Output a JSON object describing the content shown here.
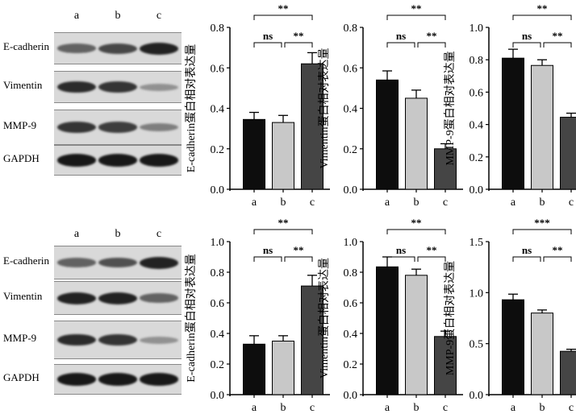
{
  "blots": [
    {
      "lanes": [
        "a",
        "b",
        "c"
      ],
      "proteins": [
        "E-cadherin",
        "Vimentin",
        "MMP-9",
        "GAPDH"
      ],
      "intensity": [
        [
          0.55,
          0.7,
          0.9
        ],
        [
          0.85,
          0.8,
          0.3
        ],
        [
          0.8,
          0.75,
          0.4
        ],
        [
          0.95,
          0.95,
          0.95
        ]
      ]
    },
    {
      "lanes": [
        "a",
        "b",
        "c"
      ],
      "proteins": [
        "E-cadherin",
        "Vimentin",
        "MMP-9",
        "GAPDH"
      ],
      "intensity": [
        [
          0.55,
          0.65,
          0.9
        ],
        [
          0.9,
          0.9,
          0.55
        ],
        [
          0.85,
          0.8,
          0.3
        ],
        [
          0.95,
          0.95,
          0.95
        ]
      ]
    }
  ],
  "colors": {
    "a": "#0d0d0d",
    "b": "#c8c8c8",
    "c": "#454545"
  },
  "chart_data": [
    {
      "type": "bar",
      "categories": [
        "a",
        "b",
        "c"
      ],
      "values": [
        0.345,
        0.33,
        0.62
      ],
      "errors": [
        0.035,
        0.035,
        0.055
      ],
      "ylabel": "E-cadherin蛋白相对表达量",
      "ylim": [
        0,
        0.8
      ],
      "yticks": [
        "0.0",
        "0.2",
        "0.4",
        "0.6",
        "0.8"
      ],
      "sig": [
        {
          "pair": [
            "a",
            "c"
          ],
          "label": "**"
        },
        {
          "pair": [
            "a",
            "b"
          ],
          "label": "ns"
        },
        {
          "pair": [
            "b",
            "c"
          ],
          "label": "**"
        }
      ]
    },
    {
      "type": "bar",
      "categories": [
        "a",
        "b",
        "c"
      ],
      "values": [
        0.54,
        0.45,
        0.2
      ],
      "errors": [
        0.045,
        0.04,
        0.025
      ],
      "ylabel": "Vimentin蛋白相对表达量",
      "ylim": [
        0,
        0.8
      ],
      "yticks": [
        "0.0",
        "0.2",
        "0.4",
        "0.6",
        "0.8"
      ],
      "sig": [
        {
          "pair": [
            "a",
            "c"
          ],
          "label": "**"
        },
        {
          "pair": [
            "a",
            "b"
          ],
          "label": "ns"
        },
        {
          "pair": [
            "b",
            "c"
          ],
          "label": "**"
        }
      ]
    },
    {
      "type": "bar",
      "categories": [
        "a",
        "b",
        "c"
      ],
      "values": [
        0.81,
        0.765,
        0.445
      ],
      "errors": [
        0.055,
        0.035,
        0.025
      ],
      "ylabel": "MMP-9蛋白相对表达量",
      "ylim": [
        0,
        1.0
      ],
      "yticks": [
        "0.0",
        "0.2",
        "0.4",
        "0.6",
        "0.8",
        "1.0"
      ],
      "sig": [
        {
          "pair": [
            "a",
            "c"
          ],
          "label": "**"
        },
        {
          "pair": [
            "a",
            "b"
          ],
          "label": "ns"
        },
        {
          "pair": [
            "b",
            "c"
          ],
          "label": "**"
        }
      ]
    },
    {
      "type": "bar",
      "categories": [
        "a",
        "b",
        "c"
      ],
      "values": [
        0.33,
        0.35,
        0.71
      ],
      "errors": [
        0.055,
        0.035,
        0.07
      ],
      "ylabel": "E-cadherin蛋白相对表达量",
      "ylim": [
        0,
        1.0
      ],
      "yticks": [
        "0.0",
        "0.2",
        "0.4",
        "0.6",
        "0.8",
        "1.0"
      ],
      "sig": [
        {
          "pair": [
            "a",
            "c"
          ],
          "label": "**"
        },
        {
          "pair": [
            "a",
            "b"
          ],
          "label": "ns"
        },
        {
          "pair": [
            "b",
            "c"
          ],
          "label": "**"
        }
      ]
    },
    {
      "type": "bar",
      "categories": [
        "a",
        "b",
        "c"
      ],
      "values": [
        0.835,
        0.78,
        0.38
      ],
      "errors": [
        0.065,
        0.04,
        0.035
      ],
      "ylabel": "Vimentin蛋白相对表达量",
      "ylim": [
        0,
        1.0
      ],
      "yticks": [
        "0.0",
        "0.2",
        "0.4",
        "0.6",
        "0.8",
        "1.0"
      ],
      "sig": [
        {
          "pair": [
            "a",
            "c"
          ],
          "label": "**"
        },
        {
          "pair": [
            "a",
            "b"
          ],
          "label": "ns"
        },
        {
          "pair": [
            "b",
            "c"
          ],
          "label": "**"
        }
      ]
    },
    {
      "type": "bar",
      "categories": [
        "a",
        "b",
        "c"
      ],
      "values": [
        0.93,
        0.8,
        0.425
      ],
      "errors": [
        0.055,
        0.03,
        0.02
      ],
      "ylabel": "MMP-9蛋白相对表达量",
      "ylim": [
        0,
        1.5
      ],
      "yticks": [
        "0.0",
        "0.5",
        "1.0",
        "1.5"
      ],
      "sig": [
        {
          "pair": [
            "a",
            "c"
          ],
          "label": "***"
        },
        {
          "pair": [
            "a",
            "b"
          ],
          "label": "ns"
        },
        {
          "pair": [
            "b",
            "c"
          ],
          "label": "**"
        }
      ]
    }
  ]
}
